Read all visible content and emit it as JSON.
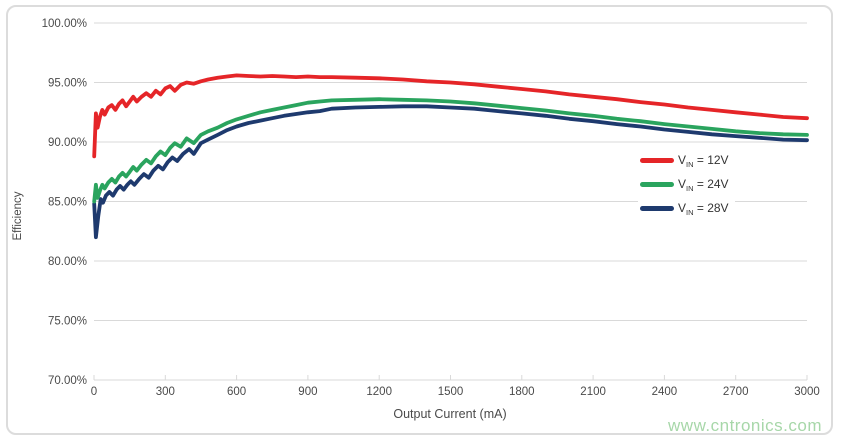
{
  "chart_data": {
    "type": "line",
    "title": "",
    "xlabel": "Output Current (mA)",
    "ylabel": "Efficiency",
    "xlim": [
      0,
      3000
    ],
    "ylim": [
      70,
      100
    ],
    "xticks": [
      0,
      300,
      600,
      900,
      1200,
      1500,
      1800,
      2100,
      2400,
      2700,
      3000
    ],
    "yticks": [
      100,
      95,
      90,
      85,
      80,
      75,
      70
    ],
    "ytick_labels": [
      "100.00%",
      "95.00%",
      "90.00%",
      "85.00%",
      "80.00%",
      "75.00%",
      "70.00%"
    ],
    "grid": "horizontal",
    "gridline_color": "#d9d9d9",
    "tick_label_color": "#4a4a4a",
    "legend_position": "right-middle",
    "series": [
      {
        "id": "vin-12v",
        "name": "VIN = 12V",
        "label_base": "V",
        "label_sub": "IN",
        "label_rest": " = 12V",
        "color": "#e52528",
        "stroke_width": 3.8,
        "points": [
          [
            1,
            88.8
          ],
          [
            8,
            92.4
          ],
          [
            15,
            91.2
          ],
          [
            25,
            92.1
          ],
          [
            35,
            92.7
          ],
          [
            45,
            92.3
          ],
          [
            60,
            92.9
          ],
          [
            75,
            93.1
          ],
          [
            90,
            92.7
          ],
          [
            105,
            93.2
          ],
          [
            120,
            93.5
          ],
          [
            135,
            93.0
          ],
          [
            150,
            93.4
          ],
          [
            165,
            93.8
          ],
          [
            180,
            93.4
          ],
          [
            200,
            93.8
          ],
          [
            220,
            94.1
          ],
          [
            240,
            93.8
          ],
          [
            260,
            94.3
          ],
          [
            280,
            94.0
          ],
          [
            300,
            94.5
          ],
          [
            320,
            94.7
          ],
          [
            340,
            94.3
          ],
          [
            365,
            94.8
          ],
          [
            390,
            95.0
          ],
          [
            420,
            94.9
          ],
          [
            450,
            95.1
          ],
          [
            480,
            95.25
          ],
          [
            520,
            95.4
          ],
          [
            560,
            95.5
          ],
          [
            600,
            95.6
          ],
          [
            650,
            95.55
          ],
          [
            700,
            95.5
          ],
          [
            750,
            95.55
          ],
          [
            800,
            95.5
          ],
          [
            850,
            95.45
          ],
          [
            900,
            95.5
          ],
          [
            950,
            95.45
          ],
          [
            1000,
            95.45
          ],
          [
            1100,
            95.4
          ],
          [
            1200,
            95.35
          ],
          [
            1300,
            95.25
          ],
          [
            1400,
            95.1
          ],
          [
            1500,
            95.0
          ],
          [
            1600,
            94.85
          ],
          [
            1700,
            94.65
          ],
          [
            1800,
            94.45
          ],
          [
            1900,
            94.25
          ],
          [
            2000,
            94.0
          ],
          [
            2100,
            93.8
          ],
          [
            2200,
            93.6
          ],
          [
            2300,
            93.35
          ],
          [
            2400,
            93.15
          ],
          [
            2500,
            92.9
          ],
          [
            2600,
            92.7
          ],
          [
            2700,
            92.5
          ],
          [
            2800,
            92.3
          ],
          [
            2900,
            92.1
          ],
          [
            3000,
            92.0
          ]
        ]
      },
      {
        "id": "vin-24v",
        "name": "VIN = 24V",
        "label_base": "V",
        "label_sub": "IN",
        "label_rest": " = 24V",
        "color": "#2aa45e",
        "stroke_width": 3.8,
        "points": [
          [
            1,
            85.0
          ],
          [
            8,
            86.4
          ],
          [
            15,
            85.3
          ],
          [
            25,
            85.9
          ],
          [
            35,
            86.4
          ],
          [
            45,
            86.1
          ],
          [
            60,
            86.6
          ],
          [
            75,
            86.9
          ],
          [
            90,
            86.6
          ],
          [
            105,
            87.1
          ],
          [
            120,
            87.4
          ],
          [
            135,
            87.1
          ],
          [
            150,
            87.5
          ],
          [
            165,
            87.9
          ],
          [
            180,
            87.6
          ],
          [
            200,
            88.1
          ],
          [
            220,
            88.5
          ],
          [
            240,
            88.2
          ],
          [
            260,
            88.8
          ],
          [
            280,
            89.2
          ],
          [
            300,
            88.9
          ],
          [
            320,
            89.5
          ],
          [
            340,
            89.9
          ],
          [
            365,
            89.6
          ],
          [
            390,
            90.3
          ],
          [
            420,
            89.9
          ],
          [
            450,
            90.6
          ],
          [
            480,
            90.9
          ],
          [
            520,
            91.2
          ],
          [
            560,
            91.6
          ],
          [
            600,
            91.9
          ],
          [
            650,
            92.2
          ],
          [
            700,
            92.5
          ],
          [
            750,
            92.7
          ],
          [
            800,
            92.9
          ],
          [
            850,
            93.1
          ],
          [
            900,
            93.3
          ],
          [
            950,
            93.4
          ],
          [
            1000,
            93.5
          ],
          [
            1100,
            93.55
          ],
          [
            1200,
            93.6
          ],
          [
            1300,
            93.55
          ],
          [
            1400,
            93.5
          ],
          [
            1500,
            93.4
          ],
          [
            1600,
            93.25
          ],
          [
            1700,
            93.05
          ],
          [
            1800,
            92.85
          ],
          [
            1900,
            92.65
          ],
          [
            2000,
            92.4
          ],
          [
            2100,
            92.2
          ],
          [
            2200,
            91.95
          ],
          [
            2300,
            91.75
          ],
          [
            2400,
            91.5
          ],
          [
            2500,
            91.3
          ],
          [
            2600,
            91.1
          ],
          [
            2700,
            90.9
          ],
          [
            2800,
            90.75
          ],
          [
            2900,
            90.65
          ],
          [
            3000,
            90.6
          ]
        ]
      },
      {
        "id": "vin-28v",
        "name": "VIN = 28V",
        "label_base": "V",
        "label_sub": "IN",
        "label_rest": " = 28V",
        "color": "#1e3a6e",
        "stroke_width": 3.8,
        "points": [
          [
            1,
            84.8
          ],
          [
            8,
            82.0
          ],
          [
            18,
            83.8
          ],
          [
            28,
            85.2
          ],
          [
            38,
            84.9
          ],
          [
            50,
            85.5
          ],
          [
            65,
            85.8
          ],
          [
            80,
            85.5
          ],
          [
            95,
            86.0
          ],
          [
            110,
            86.3
          ],
          [
            125,
            86.0
          ],
          [
            140,
            86.4
          ],
          [
            155,
            86.7
          ],
          [
            170,
            86.4
          ],
          [
            190,
            86.9
          ],
          [
            210,
            87.3
          ],
          [
            230,
            87.0
          ],
          [
            250,
            87.6
          ],
          [
            270,
            88.0
          ],
          [
            290,
            87.7
          ],
          [
            310,
            88.3
          ],
          [
            330,
            88.7
          ],
          [
            350,
            88.4
          ],
          [
            375,
            89.0
          ],
          [
            400,
            89.4
          ],
          [
            420,
            89.0
          ],
          [
            450,
            89.9
          ],
          [
            480,
            90.2
          ],
          [
            520,
            90.6
          ],
          [
            560,
            91.0
          ],
          [
            600,
            91.3
          ],
          [
            650,
            91.6
          ],
          [
            700,
            91.8
          ],
          [
            750,
            92.0
          ],
          [
            800,
            92.2
          ],
          [
            850,
            92.35
          ],
          [
            900,
            92.5
          ],
          [
            950,
            92.6
          ],
          [
            1000,
            92.8
          ],
          [
            1100,
            92.9
          ],
          [
            1200,
            92.95
          ],
          [
            1300,
            93.0
          ],
          [
            1400,
            93.0
          ],
          [
            1500,
            92.9
          ],
          [
            1600,
            92.8
          ],
          [
            1700,
            92.6
          ],
          [
            1800,
            92.4
          ],
          [
            1900,
            92.2
          ],
          [
            2000,
            91.95
          ],
          [
            2100,
            91.75
          ],
          [
            2200,
            91.5
          ],
          [
            2300,
            91.3
          ],
          [
            2400,
            91.05
          ],
          [
            2500,
            90.85
          ],
          [
            2600,
            90.65
          ],
          [
            2700,
            90.5
          ],
          [
            2800,
            90.35
          ],
          [
            2900,
            90.2
          ],
          [
            3000,
            90.15
          ]
        ]
      }
    ]
  },
  "watermark": {
    "text": "www.cntronics.com",
    "color": "#a7d7a9"
  },
  "frame": {
    "border_color": "#dcdcdc"
  }
}
